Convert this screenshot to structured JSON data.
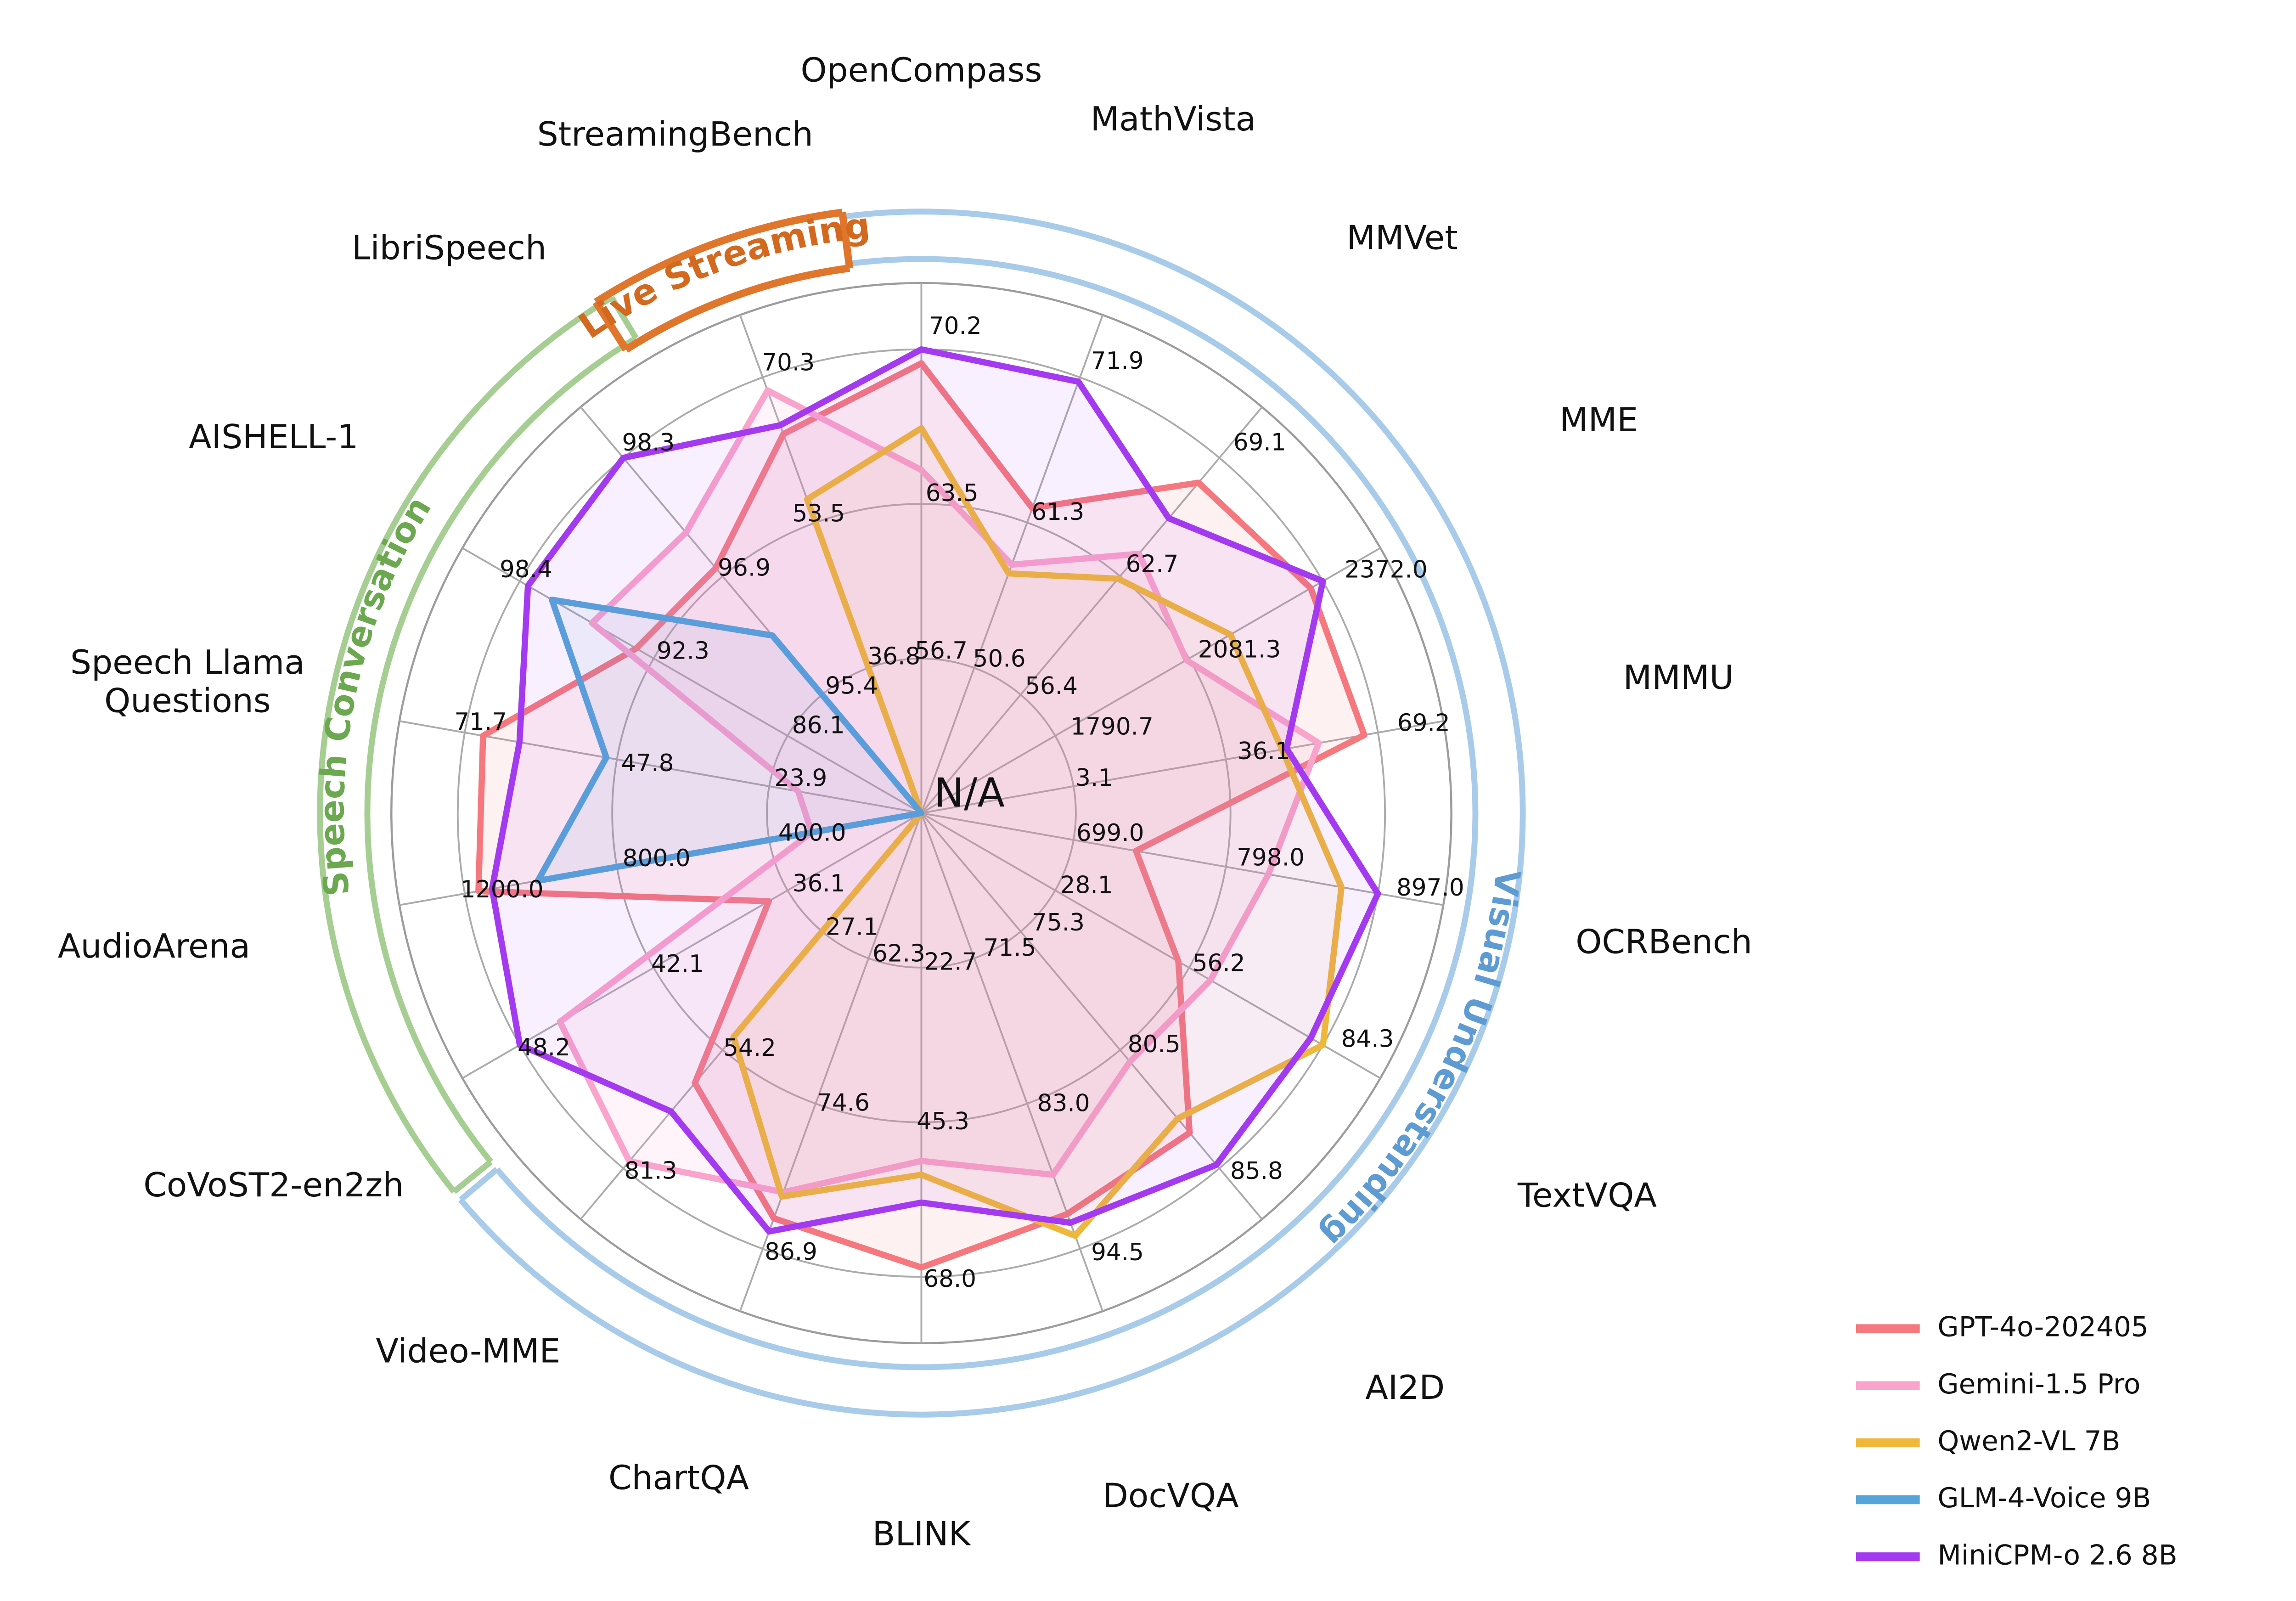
{
  "chart_data": {
    "type": "radar",
    "title": "",
    "center_label": "N/A",
    "grid": {
      "rings": [
        0.3333,
        0.6667,
        1.0
      ],
      "spine_r": 1.143,
      "grid_color": "#ababab",
      "spine_color": "#9c9c9c"
    },
    "axes": [
      {
        "name": "OpenCompass",
        "category": "Visual Understanding",
        "angle": 0,
        "label_r": 500
      },
      {
        "name": "MathVista",
        "category": "Visual Understanding",
        "angle": 20,
        "label_r": 497
      },
      {
        "name": "MMVet",
        "category": "Visual Understanding",
        "angle": 40,
        "label_r": 505
      },
      {
        "name": "MME",
        "category": "Visual Understanding",
        "angle": 60,
        "label_r": 528
      },
      {
        "name": "MMMU",
        "category": "Visual Understanding",
        "angle": 80,
        "label_r": 519
      },
      {
        "name": "OCRBench",
        "category": "Visual Understanding",
        "angle": 100,
        "label_r": 509
      },
      {
        "name": "TextVQA",
        "category": "Visual Understanding",
        "angle": 120,
        "label_r": 519
      },
      {
        "name": "AI2D",
        "category": "Visual Understanding",
        "angle": 140,
        "label_r": 508
      },
      {
        "name": "DocVQA",
        "category": "Visual Understanding",
        "angle": 160,
        "label_r": 492
      },
      {
        "name": "BLINK",
        "category": "Visual Understanding",
        "angle": 180,
        "label_r": 488
      },
      {
        "name": "ChartQA",
        "category": "Visual Understanding",
        "angle": 200,
        "label_r": 479
      },
      {
        "name": "Video-MME",
        "category": "Visual Understanding",
        "angle": 220,
        "label_r": 476
      },
      {
        "name": "CoVoST2-en2zh",
        "category": "Speech Conversation",
        "angle": 240,
        "label_r": 505
      },
      {
        "name": "AudioArena",
        "category": "Speech Conversation",
        "angle": 260,
        "label_r": 526
      },
      {
        "name": "Speech Llama\nQuestions",
        "category": "Speech Conversation",
        "angle": 280,
        "label_r": 503
      },
      {
        "name": "AISHELL-1",
        "category": "Speech Conversation",
        "angle": 300,
        "label_r": 505
      },
      {
        "name": "LibriSpeech",
        "category": "Speech Conversation",
        "angle": 320,
        "label_r": 496
      },
      {
        "name": "StreamingBench",
        "category": "Live Streaming",
        "angle": 340,
        "label_r": 486
      }
    ],
    "series": [
      {
        "name": "GPT-4o-202405",
        "color": "#F5787E",
        "fill_opacity": 0.1,
        "radius_fraction": [
          0.97,
          0.7,
          0.93,
          0.97,
          0.97,
          0.47,
          0.64,
          0.9,
          0.92,
          0.98,
          0.93,
          0.76,
          0.38,
          0.97,
          0.96,
          0.71,
          0.69,
          0.87
        ]
      },
      {
        "name": "Gemini-1.5 Pro",
        "color": "#FAA3CC",
        "fill_opacity": 0.12,
        "radius_fraction": [
          0.74,
          0.57,
          0.73,
          0.66,
          0.87,
          0.76,
          0.72,
          0.7,
          0.83,
          0.75,
          0.87,
          0.98,
          0.9,
          0.24,
          0.27,
          0.82,
          0.79,
          0.97
        ]
      },
      {
        "name": "Qwen2-VL 7B",
        "color": "#EFB83C",
        "fill_opacity": 0.05,
        "radius_fraction": [
          0.83,
          0.55,
          0.66,
          0.77,
          0.79,
          0.92,
          1.0,
          0.86,
          0.97,
          0.78,
          0.88,
          0.63,
          0.0,
          0.0,
          0.0,
          0.0,
          0.0,
          0.72
        ]
      },
      {
        "name": "GLM-4-Voice 9B",
        "color": "#55A5DA",
        "fill_opacity": 0.08,
        "radius_fraction": [
          0,
          0,
          0,
          0,
          0,
          0,
          0,
          0,
          0,
          0,
          0,
          0,
          0,
          0.84,
          0.69,
          0.92,
          0.5,
          0
        ]
      },
      {
        "name": "MiniCPM-o 2.6 8B",
        "color": "#A43AF0",
        "fill_opacity": 0.08,
        "radius_fraction": [
          1.0,
          0.99,
          0.83,
          1.0,
          0.8,
          1.0,
          0.97,
          0.99,
          0.94,
          0.84,
          0.96,
          0.84,
          1.0,
          0.94,
          0.88,
          0.98,
          1.0,
          0.89
        ]
      }
    ],
    "value_labels": [
      {
        "text": "70.2",
        "angle": 4,
        "r": 1.05
      },
      {
        "text": "71.9",
        "angle": 23.5,
        "r": 1.06
      },
      {
        "text": "69.1",
        "angle": 42.5,
        "r": 1.08
      },
      {
        "text": "2372.0",
        "angle": 62.5,
        "r": 1.13
      },
      {
        "text": "69.2",
        "angle": 80,
        "r": 1.1
      },
      {
        "text": "897.0",
        "angle": 98.5,
        "r": 1.11
      },
      {
        "text": "84.3",
        "angle": 117,
        "r": 1.08
      },
      {
        "text": "85.8",
        "angle": 137,
        "r": 1.06
      },
      {
        "text": "94.5",
        "angle": 156,
        "r": 1.04
      },
      {
        "text": "68.0",
        "angle": 176.5,
        "r": 1.01
      },
      {
        "text": "86.9",
        "angle": 196.5,
        "r": 0.99
      },
      {
        "text": "81.3",
        "angle": 217,
        "r": 0.97
      },
      {
        "text": "48.2",
        "angle": 238,
        "r": 0.96
      },
      {
        "text": "1200.0",
        "angle": 259.5,
        "r": 0.92
      },
      {
        "text": "71.7",
        "angle": 281.5,
        "r": 0.97
      },
      {
        "text": "98.4",
        "angle": 301.5,
        "r": 1.0
      },
      {
        "text": "98.3",
        "angle": 323.5,
        "r": 0.99
      },
      {
        "text": "70.3",
        "angle": 343.5,
        "r": 1.01
      },
      {
        "text": "63.5",
        "angle": 5.5,
        "r": 0.69
      },
      {
        "text": "53.5",
        "angle": 341,
        "r": 0.68
      },
      {
        "text": "61.3",
        "angle": 24.5,
        "r": 0.71
      },
      {
        "text": "62.7",
        "angle": 43,
        "r": 0.73
      },
      {
        "text": "2081.3",
        "angle": 63,
        "r": 0.77
      },
      {
        "text": "1790.7",
        "angle": 66,
        "r": 0.45
      },
      {
        "text": "36.1",
        "angle": 80,
        "r": 0.75
      },
      {
        "text": "3.1",
        "angle": 79,
        "r": 0.38
      },
      {
        "text": "699.0",
        "angle": 96.5,
        "r": 0.41
      },
      {
        "text": "798.0",
        "angle": 97.5,
        "r": 0.76
      },
      {
        "text": "28.1",
        "angle": 114,
        "r": 0.39
      },
      {
        "text": "56.2",
        "angle": 117,
        "r": 0.72
      },
      {
        "text": "75.3",
        "angle": 129,
        "r": 0.38
      },
      {
        "text": "80.5",
        "angle": 135,
        "r": 0.71
      },
      {
        "text": "71.5",
        "angle": 147,
        "r": 0.35
      },
      {
        "text": "83.0",
        "angle": 154,
        "r": 0.7
      },
      {
        "text": "22.7",
        "angle": 169,
        "r": 0.33
      },
      {
        "text": "45.3",
        "angle": 176,
        "r": 0.67
      },
      {
        "text": "62.3",
        "angle": 189,
        "r": 0.31
      },
      {
        "text": "74.6",
        "angle": 195,
        "r": 0.65
      },
      {
        "text": "27.1",
        "angle": 211,
        "r": 0.29
      },
      {
        "text": "54.2",
        "angle": 216,
        "r": 0.63
      },
      {
        "text": "36.1",
        "angle": 235,
        "r": 0.27
      },
      {
        "text": "42.1",
        "angle": 238,
        "r": 0.62
      },
      {
        "text": "400.0",
        "angle": 259,
        "r": 0.24
      },
      {
        "text": "800.0",
        "angle": 260,
        "r": 0.58
      },
      {
        "text": "23.9",
        "angle": 285.5,
        "r": 0.27
      },
      {
        "text": "47.8",
        "angle": 280,
        "r": 0.6
      },
      {
        "text": "86.1",
        "angle": 310,
        "r": 0.29
      },
      {
        "text": "92.3",
        "angle": 304,
        "r": 0.62
      },
      {
        "text": "95.4",
        "angle": 331,
        "r": 0.31
      },
      {
        "text": "96.9",
        "angle": 324,
        "r": 0.65
      },
      {
        "text": "36.8",
        "angle": 350,
        "r": 0.34
      },
      {
        "text": "56.7",
        "angle": 7,
        "r": 0.35
      },
      {
        "text": "50.6",
        "angle": 27,
        "r": 0.37
      },
      {
        "text": "56.4",
        "angle": 46,
        "r": 0.39
      },
      {
        "text": "N/A",
        "angle": 70,
        "r": 0.11,
        "big": true
      }
    ],
    "category_arcs": [
      {
        "label": "Visual Understanding",
        "band_color": "#A9CBEA",
        "text_color": "#5E9BD3",
        "start": 352.5,
        "end": 590,
        "text_start": 60,
        "text_end": 172,
        "box": false
      },
      {
        "label": "Speech Conversation",
        "band_color": "#A6CE93",
        "text_color": "#6BA84F",
        "start": 231,
        "end": 329,
        "text_start": 236,
        "text_end": 328,
        "box": false
      },
      {
        "label": "Live Streaming",
        "band_color": "#E0762C",
        "text_color": "#D2691E",
        "start": 327.5,
        "end": 352.5,
        "text_start": 324,
        "text_end": 356,
        "box": true
      }
    ],
    "legend": [
      {
        "label": "GPT-4o-202405",
        "color": "#F5787E"
      },
      {
        "label": "Gemini-1.5 Pro",
        "color": "#FAA3CC"
      },
      {
        "label": "Qwen2-VL 7B",
        "color": "#EFB83C"
      },
      {
        "label": "GLM-4-Voice 9B",
        "color": "#55A5DA"
      },
      {
        "label": "MiniCPM-o 2.6 8B",
        "color": "#A43AF0"
      }
    ]
  },
  "layout_text": {}
}
